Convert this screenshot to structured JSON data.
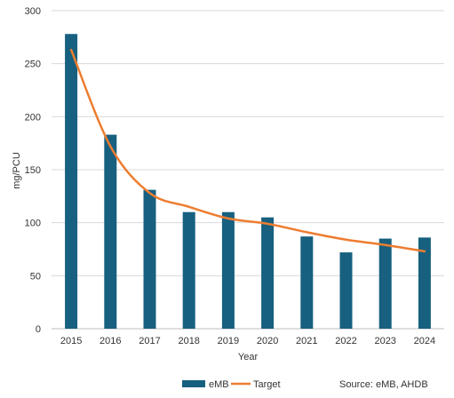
{
  "chart_data": {
    "type": "bar",
    "categories": [
      "2015",
      "2016",
      "2017",
      "2018",
      "2019",
      "2020",
      "2021",
      "2022",
      "2023",
      "2024"
    ],
    "series": [
      {
        "name": "eMB",
        "kind": "bar",
        "color": "#17607f",
        "values": [
          278,
          183,
          131,
          110,
          110,
          105,
          87,
          72,
          85,
          86
        ]
      },
      {
        "name": "Target",
        "kind": "line",
        "color": "#ed7d31",
        "values": [
          263,
          172,
          128,
          115,
          104,
          99,
          91,
          84,
          79,
          73
        ]
      }
    ],
    "xlabel": "Year",
    "ylabel": "mg/PCU",
    "ylim": [
      0,
      300
    ],
    "yticks": [
      "0",
      "50",
      "100",
      "150",
      "200",
      "250",
      "300"
    ],
    "grid": true,
    "legend_position": "bottom",
    "source": "Source: eMB, AHDB"
  }
}
